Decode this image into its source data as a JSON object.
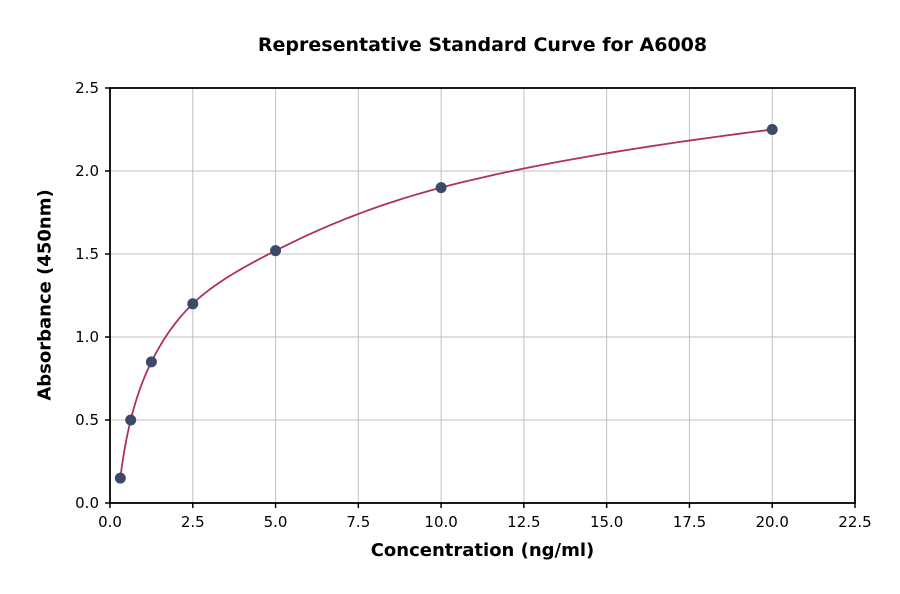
{
  "chart_data": {
    "type": "scatter",
    "title": "Representative Standard Curve for A6008",
    "xlabel": "Concentration (ng/ml)",
    "ylabel": "Absorbance (450nm)",
    "x": [
      0.3125,
      0.625,
      1.25,
      2.5,
      5,
      10,
      20
    ],
    "y": [
      0.15,
      0.5,
      0.85,
      1.2,
      1.52,
      1.9,
      2.25
    ],
    "curve": "smooth log-shaped fit through points",
    "xlim": [
      0,
      22.5
    ],
    "ylim": [
      0,
      2.5
    ],
    "xtick_labels": [
      "0.0",
      "2.5",
      "5.0",
      "7.5",
      "10.0",
      "12.5",
      "15.0",
      "17.5",
      "20.0",
      "22.5"
    ],
    "ytick_labels": [
      "0.0",
      "0.5",
      "1.0",
      "1.5",
      "2.0",
      "2.5"
    ],
    "grid": true,
    "legend": "none",
    "colors": {
      "line": "#b03060",
      "marker": "#3b4a68",
      "grid": "#c0c0c0",
      "axis": "#000000",
      "background": "#ffffff"
    }
  }
}
